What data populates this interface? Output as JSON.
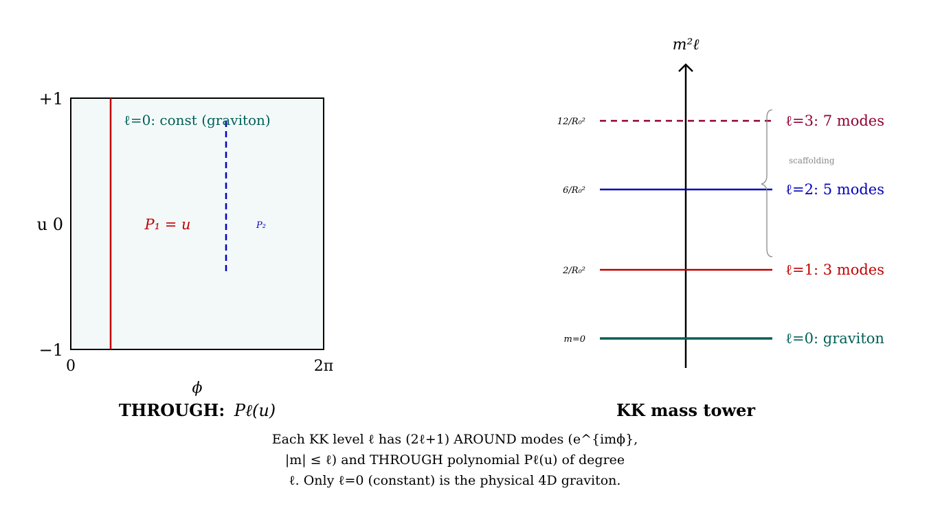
{
  "colors": {
    "teal": "#006058",
    "red": "#c00000",
    "blue": "#0000bb",
    "maroon": "#900030",
    "panel_fill": "#f3f9f9",
    "scaffold": "#888888"
  },
  "left_panel": {
    "y_tick_top": "+1",
    "y_tick_mid": "u 0",
    "y_tick_bottom": "−1",
    "x_tick_left": "0",
    "x_tick_right": "2π",
    "x_label": "ϕ",
    "l0_label": "ℓ=0: const (graviton)",
    "p1_label": "P₁ = u",
    "p2_label": "P₂",
    "title_bold": "THROUGH:",
    "title_math": "Pℓ(u)"
  },
  "right_panel": {
    "axis_label": "m²ℓ",
    "levels": [
      {
        "tick": "m=0",
        "label": "ℓ=0: graviton",
        "color": "#006058",
        "style": "solid",
        "value": 0
      },
      {
        "tick": "2/R₀²",
        "label": "ℓ=1: 3 modes",
        "color": "#c00000",
        "style": "solid",
        "value": 2
      },
      {
        "tick": "6/R₀²",
        "label": "ℓ=2: 5 modes",
        "color": "#0000bb",
        "style": "solid",
        "value": 6
      },
      {
        "tick": "12/R₀²",
        "label": "ℓ=3: 7 modes",
        "color": "#900030",
        "style": "dashed",
        "value": 12
      }
    ],
    "brace_label": "scaffolding",
    "title": "KK mass tower"
  },
  "caption": {
    "line1": "Each KK level ℓ has (2ℓ+1) AROUND modes (e^{imϕ},",
    "line2": "|m| ≤ ℓ) and THROUGH polynomial Pℓ(u) of degree",
    "line3": "ℓ. Only ℓ=0 (constant) is the physical 4D graviton."
  }
}
